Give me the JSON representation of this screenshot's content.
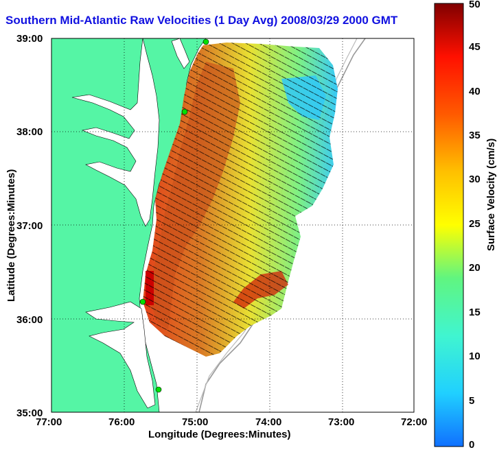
{
  "title": "Southern Mid-Atlantic Raw Velocities (1 Day Avg) 2008/03/29 2000 GMT",
  "xlabel": "Longitude (Degrees:Minutes)",
  "ylabel": "Latitude (Degrees:Minutes)",
  "colorbar": {
    "label": "Surface Velocity (cm/s)",
    "ticks": [
      "50",
      "45",
      "40",
      "35",
      "30",
      "25",
      "20",
      "15",
      "10",
      "5",
      "0"
    ],
    "min": 0,
    "max": 50
  },
  "x_ticks": [
    "77:00",
    "76:00",
    "75:00",
    "74:00",
    "73:00",
    "72:00"
  ],
  "y_ticks": [
    "39:00",
    "38:00",
    "37:00",
    "36:00",
    "35:00"
  ],
  "colors": {
    "land": "#55f5a5",
    "water": "#ffffff",
    "title": "#1010e0",
    "site_marker": "#00e000"
  },
  "map": {
    "lon_range": [
      "77:00",
      "72:00"
    ],
    "lat_range": [
      "35:00",
      "39:00"
    ],
    "grid": true,
    "colorbar_position": "right",
    "site_markers": 5
  }
}
